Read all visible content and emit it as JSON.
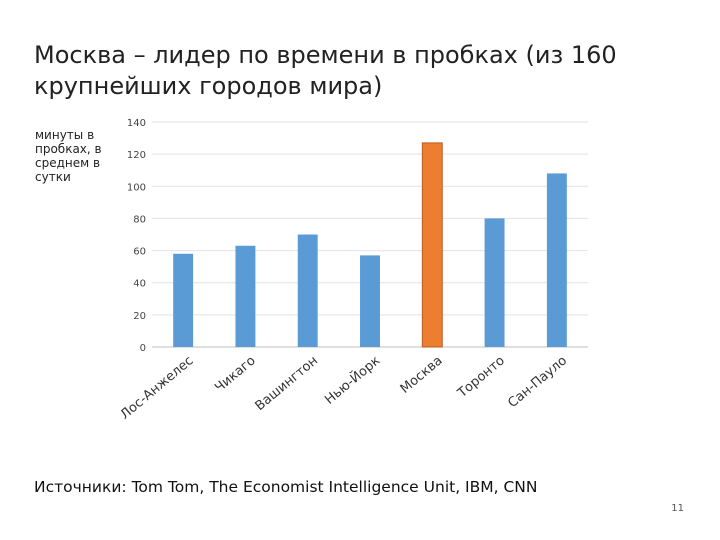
{
  "slide": {
    "title_line1": "Москва – лидер по времени в пробках (из 160",
    "title_line2": "крупнейших городов мира)",
    "source": "Источники: Tom Tom, The Economist Intelligence Unit, IBM, CNN",
    "page_number": "11"
  },
  "chart_data": {
    "type": "bar",
    "ylabel": "минуты в пробках, в среднем в сутки",
    "categories": [
      "Лос-Анжелес",
      "Чикаго",
      "Вашингтон",
      "Нью-Йорк",
      "Москва",
      "Торонто",
      "Сан-Пауло"
    ],
    "values": [
      58,
      63,
      70,
      57,
      127,
      80,
      108
    ],
    "ylim": [
      0,
      140
    ],
    "yticks": [
      0,
      20,
      40,
      60,
      80,
      100,
      120,
      140
    ],
    "grid": true,
    "colors": [
      "#5B9BD5",
      "#5B9BD5",
      "#5B9BD5",
      "#5B9BD5",
      "#ED7D31",
      "#5B9BD5",
      "#5B9BD5"
    ],
    "highlight_color": "#ED7D31",
    "bar_color": "#5B9BD5"
  }
}
